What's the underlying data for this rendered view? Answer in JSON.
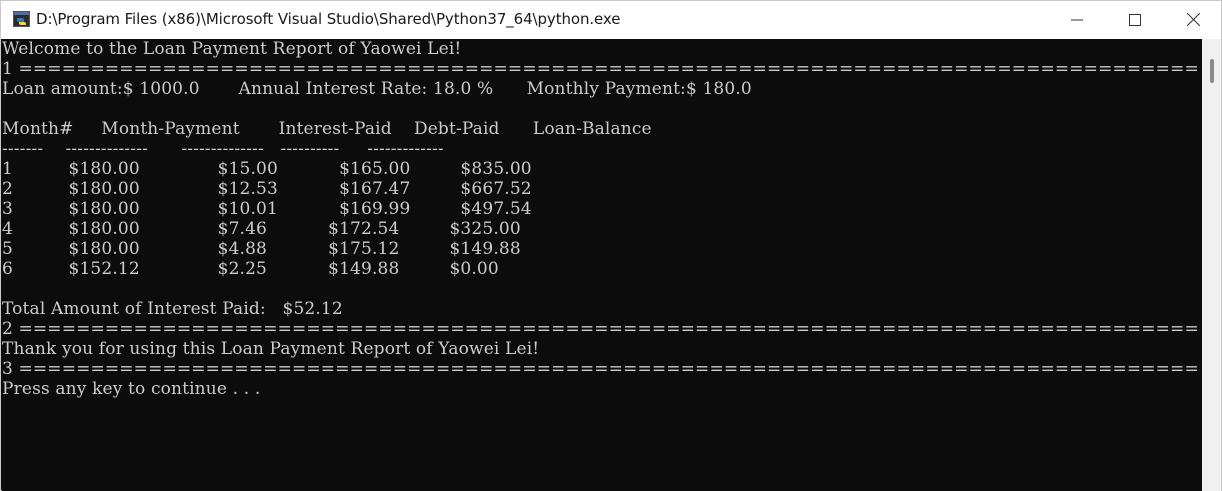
{
  "window": {
    "title": "D:\\Program Files (x86)\\Microsoft Visual Studio\\Shared\\Python37_64\\python.exe",
    "icon": "python-console-icon",
    "controls": [
      "minimize-icon",
      "maximize-icon",
      "close-icon"
    ]
  },
  "colors": {
    "console_bg": "#0c0c0c",
    "console_text": "#cccccc",
    "titlebar_bg": "#ffffff"
  },
  "console": {
    "lines": [
      "Welcome to the Loan Payment Report of Yaowei Lei!",
      "1 ==================================================================================",
      "Loan amount:$ 1000.0       Annual Interest Rate: 18.0 %      Monthly Payment:$ 180.0",
      "",
      "Month#     Month-Payment       Interest-Paid    Debt-Paid      Loan-Balance",
      "-------    --------------      --------------   ----------     -------------",
      "1          $180.00              $15.00           $165.00         $835.00",
      "2          $180.00              $12.53           $167.47         $667.52",
      "3          $180.00              $10.01           $169.99         $497.54",
      "4          $180.00              $7.46           $172.54         $325.00",
      "5          $180.00              $4.88           $175.12         $149.88",
      "6          $152.12              $2.25           $149.88         $0.00",
      "",
      "Total Amount of Interest Paid:   $52.12",
      "2 ==================================================================================",
      "Thank you for using this Loan Payment Report of Yaowei Lei!",
      "3 ==================================================================================",
      "Press any key to continue . . ."
    ]
  }
}
